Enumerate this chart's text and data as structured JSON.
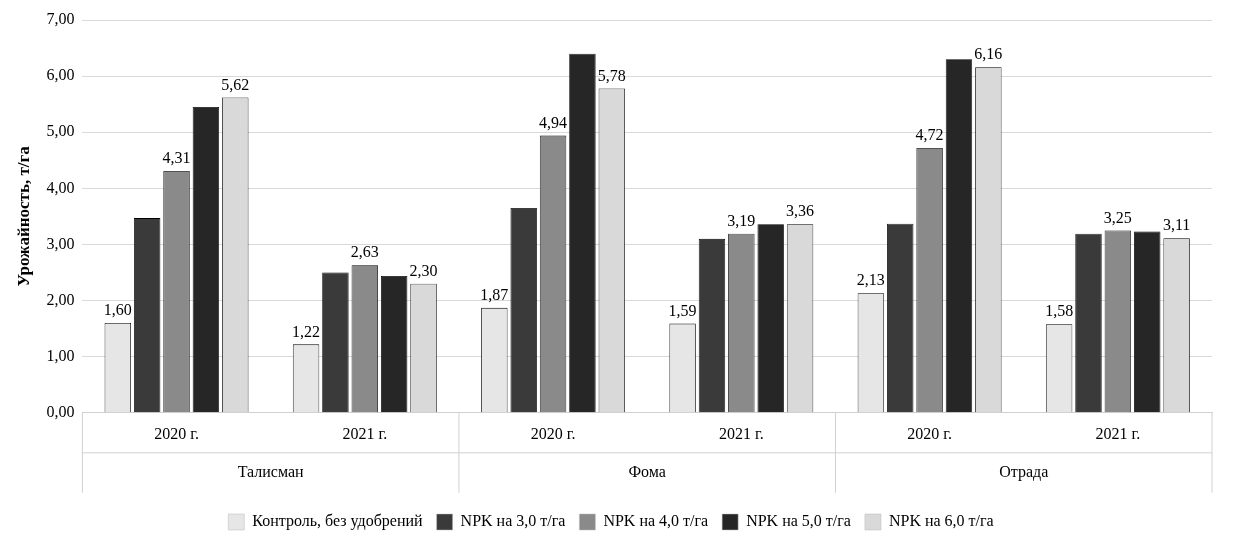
{
  "chart_data": {
    "type": "bar",
    "ylabel": "Урожайность, т/га",
    "categories": [
      "2020 г.",
      "2021 г.",
      "2020 г.",
      "2021 г.",
      "2020 г.",
      "2021 г."
    ],
    "annotations": [
      "Талисман",
      "Фома",
      "Отрада"
    ],
    "series": [
      {
        "name": "Контроль, без удобрений",
        "color": "#e6e6e6",
        "values": [
          1.6,
          1.22,
          1.87,
          1.59,
          2.13,
          1.58
        ],
        "value_labels": [
          "1,60",
          "1,22",
          "1,87",
          "1,59",
          "2,13",
          "1,58"
        ]
      },
      {
        "name": "NPK на 3,0 т/га",
        "color": "#3a3a3a",
        "values": [
          3.47,
          2.5,
          3.65,
          3.1,
          3.37,
          3.19
        ],
        "value_labels": [
          null,
          null,
          null,
          null,
          null,
          null
        ]
      },
      {
        "name": "NPK на 4,0 т/га",
        "color": "#8a8a8a",
        "values": [
          4.31,
          2.63,
          4.94,
          3.19,
          4.72,
          3.25
        ],
        "value_labels": [
          "4,31",
          "2,63",
          "4,94",
          "3,19",
          "4,72",
          "3,25"
        ]
      },
      {
        "name": "NPK на 5,0 т/га",
        "color": "#262626",
        "values": [
          5.45,
          2.44,
          6.4,
          3.36,
          6.3,
          3.23
        ],
        "value_labels": [
          null,
          null,
          null,
          null,
          null,
          null
        ]
      },
      {
        "name": "NPK на 6,0 т/га",
        "color": "#d9d9d9",
        "values": [
          5.62,
          2.3,
          5.78,
          3.36,
          6.16,
          3.11
        ],
        "value_labels": [
          "5,62",
          "2,30",
          "5,78",
          "3,36",
          "6,16",
          "3,11"
        ]
      }
    ],
    "ylim": [
      0,
      7
    ],
    "yticks": [
      {
        "value": 0,
        "label": "0,00"
      },
      {
        "value": 1,
        "label": "1,00"
      },
      {
        "value": 2,
        "label": "2,00"
      },
      {
        "value": 3,
        "label": "3,00"
      },
      {
        "value": 4,
        "label": "4,00"
      },
      {
        "value": 5,
        "label": "5,00"
      },
      {
        "value": 6,
        "label": "6,00"
      },
      {
        "value": 7,
        "label": "7,00"
      }
    ],
    "grid": "y",
    "legend": "bottom"
  }
}
